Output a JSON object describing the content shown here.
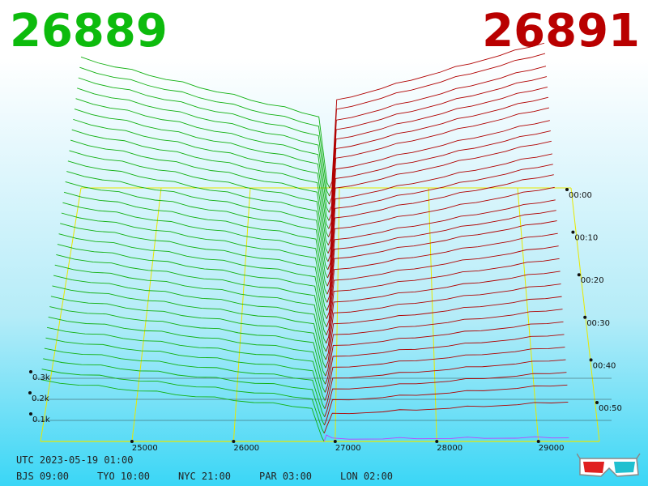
{
  "header": {
    "bid_price": "26889",
    "ask_price": "26891",
    "bid_color": "#0dbb0d",
    "ask_color": "#b90000"
  },
  "footer": {
    "utc_line": "UTC 2023-05-19 01:00",
    "zones": [
      "BJS 09:00",
      "TYO 10:00",
      "NYC 21:00",
      "PAR 03:00",
      "LON 02:00"
    ]
  },
  "chart_data": {
    "type": "area",
    "x_ticks": [
      "25000",
      "26000",
      "27000",
      "28000",
      "29000"
    ],
    "x_tick_values": [
      25000,
      26000,
      27000,
      28000,
      29000
    ],
    "y_ticks": [
      "0.1k",
      "0.2k",
      "0.3k"
    ],
    "y_tick_values": [
      100,
      200,
      300
    ],
    "time_ticks": [
      "00:00",
      "00:10",
      "00:20",
      "00:30",
      "00:40",
      "00:50"
    ],
    "xlim": [
      24100,
      29600
    ],
    "ylim": [
      0,
      350
    ],
    "mid_price": 26890,
    "bid_color": "#10b010",
    "ask_color": "#b00000",
    "latest_ask_color": "#c040ff",
    "grid_color": "#e8e800",
    "bid_depth_at_far_edge": [
      135,
      140,
      145,
      150,
      155,
      160,
      165,
      170,
      175,
      180,
      185,
      190,
      195,
      200,
      205,
      210,
      215,
      220,
      225,
      230,
      235,
      240,
      245,
      250,
      255,
      260,
      265,
      270,
      275,
      280,
      285,
      290
    ],
    "ask_depth_at_far_edge": [
      8,
      70,
      90,
      100,
      110,
      120,
      130,
      140,
      150,
      160,
      170,
      180,
      190,
      200,
      210,
      220,
      225,
      230,
      240,
      250,
      255,
      260,
      270,
      275,
      280,
      290,
      295,
      300,
      305,
      310,
      320,
      325
    ],
    "glasses_icon": "3d-glasses-icon"
  }
}
